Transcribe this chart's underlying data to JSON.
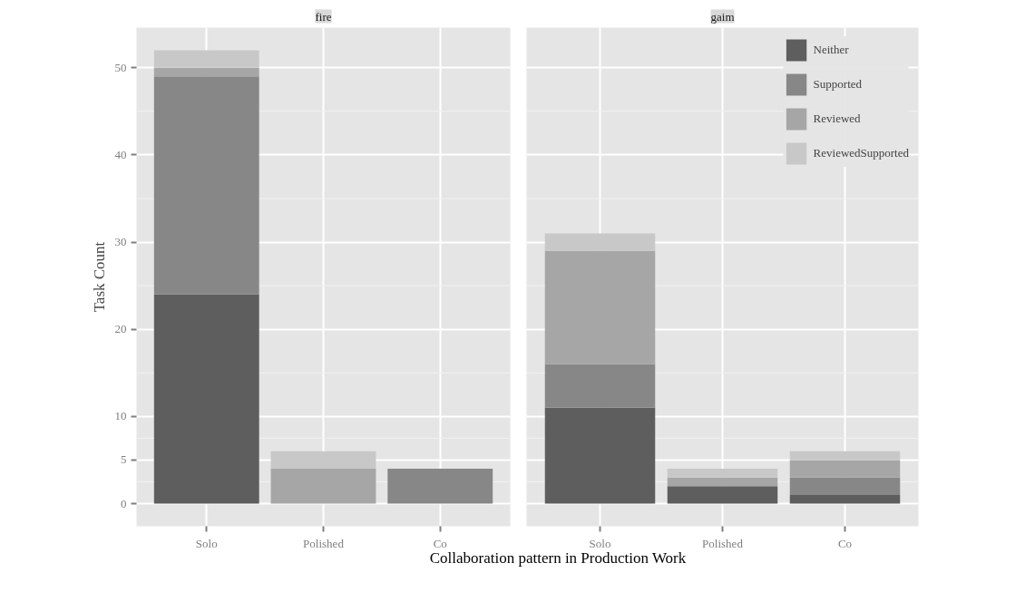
{
  "chart_data": [
    {
      "type": "bar",
      "title": "fire",
      "xlabel": "Collaboration pattern in Production Work",
      "ylabel": "Task Count",
      "stacked": true,
      "categories": [
        "Solo",
        "Polished",
        "Co"
      ],
      "ylim": [
        -2.6,
        54.6
      ],
      "yticks": [
        0,
        5,
        10,
        20,
        30,
        40,
        50
      ],
      "grid": true,
      "series": [
        {
          "color": "#5e5e5e",
          "values": [
            24,
            0,
            0
          ]
        },
        {
          "color": "#878787",
          "values": [
            25,
            0,
            4
          ]
        },
        {
          "color": "#a6a6a6",
          "values": [
            1,
            4,
            0
          ]
        },
        {
          "color": "#c8c8c8",
          "values": [
            2,
            2,
            0
          ]
        }
      ]
    },
    {
      "type": "bar",
      "title": "gaim",
      "stacked": true,
      "categories": [
        "Solo",
        "Polished",
        "Co"
      ],
      "ylim": [
        -2.6,
        54.6
      ],
      "yticks": [
        0,
        5,
        10,
        20,
        30,
        40,
        50
      ],
      "grid": true,
      "tick_labels": "x",
      "legend": "top right",
      "series": [
        {
          "name": "Neither",
          "color": "#5e5e5e",
          "values": [
            11,
            2,
            1
          ]
        },
        {
          "name": "Supported",
          "color": "#878787",
          "values": [
            5,
            0,
            2
          ]
        },
        {
          "name": "Reviewed",
          "color": "#a6a6a6",
          "values": [
            13,
            1,
            2
          ]
        },
        {
          "name": "ReviewedSupported",
          "color": "#c8c8c8",
          "values": [
            2,
            1,
            1
          ]
        }
      ]
    }
  ]
}
